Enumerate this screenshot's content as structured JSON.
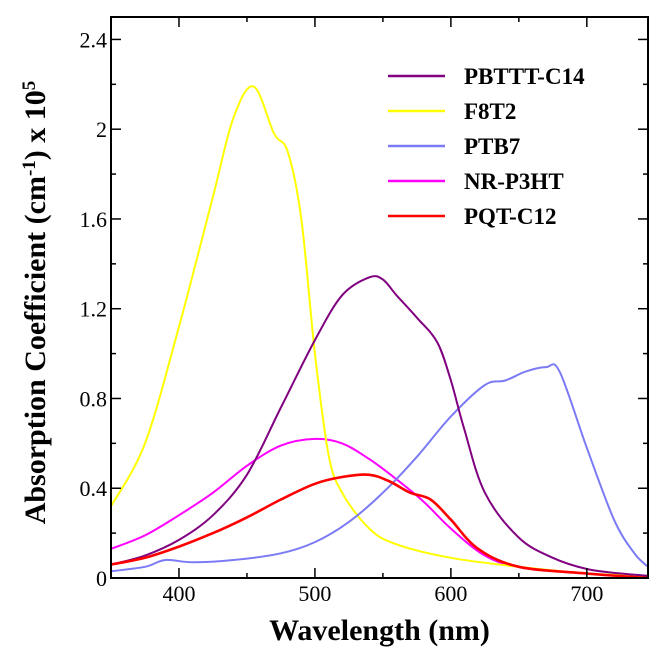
{
  "chart_data": {
    "type": "line",
    "xlabel": "Wavelength (nm)",
    "ylabel_main": "Absorption  Coefficient (cm",
    "ylabel_sup1": "-1",
    "ylabel_mid": ") x 10",
    "ylabel_sup2": "5",
    "xlim": [
      350,
      745
    ],
    "ylim": [
      0,
      2.5
    ],
    "x_ticks": [
      400,
      500,
      600,
      700
    ],
    "x_tick_labels": [
      "400",
      "500",
      "600",
      "700"
    ],
    "y_ticks": [
      0,
      0.4,
      0.8,
      1.2,
      1.6,
      2.0,
      2.4
    ],
    "y_tick_labels": [
      "0",
      "0.4",
      "0.8",
      "1.2",
      "1.6",
      "2",
      "2.4"
    ],
    "legend_position": "top-right",
    "series": [
      {
        "name": "PBTTT-C14",
        "color": "#800080",
        "x": [
          350,
          375,
          400,
          425,
          450,
          475,
          500,
          520,
          540,
          550,
          560,
          575,
          590,
          600,
          610,
          625,
          650,
          675,
          700,
          725,
          745
        ],
        "y": [
          0.06,
          0.1,
          0.17,
          0.28,
          0.46,
          0.76,
          1.06,
          1.26,
          1.34,
          1.33,
          1.26,
          1.16,
          1.05,
          0.88,
          0.66,
          0.38,
          0.18,
          0.09,
          0.04,
          0.02,
          0.01
        ]
      },
      {
        "name": "F8T2",
        "color": "#ffff00",
        "x": [
          350,
          375,
          400,
          425,
          440,
          455,
          470,
          480,
          490,
          500,
          510,
          520,
          540,
          560,
          600,
          650,
          700,
          745
        ],
        "y": [
          0.32,
          0.6,
          1.12,
          1.7,
          2.05,
          2.19,
          1.98,
          1.9,
          1.6,
          1.0,
          0.55,
          0.38,
          0.22,
          0.15,
          0.09,
          0.05,
          0.02,
          0.01
        ]
      },
      {
        "name": "PTB7",
        "color": "#7b7bf5",
        "x": [
          350,
          375,
          390,
          410,
          440,
          475,
          500,
          525,
          550,
          575,
          600,
          625,
          640,
          655,
          670,
          680,
          700,
          720,
          735,
          745
        ],
        "y": [
          0.03,
          0.05,
          0.08,
          0.07,
          0.08,
          0.11,
          0.16,
          0.25,
          0.38,
          0.54,
          0.72,
          0.86,
          0.88,
          0.92,
          0.94,
          0.92,
          0.58,
          0.26,
          0.11,
          0.05
        ]
      },
      {
        "name": "NR-P3HT",
        "color": "#ff00ff",
        "x": [
          350,
          375,
          400,
          425,
          450,
          475,
          500,
          520,
          540,
          560,
          580,
          600,
          625,
          650,
          700,
          745
        ],
        "y": [
          0.13,
          0.19,
          0.28,
          0.38,
          0.5,
          0.59,
          0.62,
          0.6,
          0.53,
          0.44,
          0.34,
          0.22,
          0.1,
          0.05,
          0.02,
          0.0
        ]
      },
      {
        "name": "PQT-C12",
        "color": "#ff0000",
        "x": [
          350,
          375,
          400,
          425,
          450,
          475,
          500,
          520,
          540,
          555,
          570,
          585,
          600,
          620,
          650,
          700,
          745
        ],
        "y": [
          0.06,
          0.09,
          0.14,
          0.2,
          0.27,
          0.35,
          0.42,
          0.45,
          0.46,
          0.43,
          0.38,
          0.35,
          0.26,
          0.13,
          0.05,
          0.02,
          0.0
        ]
      }
    ]
  }
}
